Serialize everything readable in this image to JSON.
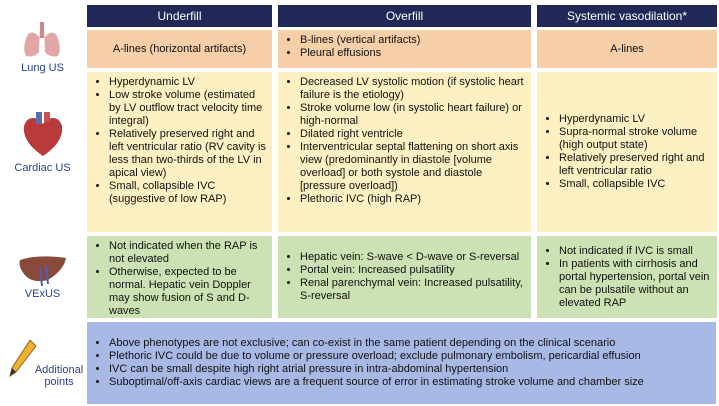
{
  "columns": [
    "Underfill",
    "Overfill",
    "Systemic vasodilation*"
  ],
  "rows": [
    {
      "label": "Lung US",
      "cells": [
        {
          "text": "A-lines (horizontal artifacts)"
        },
        {
          "bullets": [
            "B-lines (vertical artifacts)",
            "Pleural effusions"
          ]
        },
        {
          "text": "A-lines"
        }
      ]
    },
    {
      "label": "Cardiac US",
      "cells": [
        {
          "bullets": [
            "Hyperdynamic LV",
            "Low stroke volume (estimated by LV outflow tract velocity time integral)",
            "Relatively preserved right and left ventricular ratio (RV cavity is less than two-thirds of the LV in apical view)",
            "Small, collapsible IVC (suggestive of low RAP)"
          ]
        },
        {
          "bullets": [
            "Decreased LV systolic motion (if systolic heart failure is the etiology)",
            "Stroke volume low (in systolic heart failure) or high-normal",
            "Dilated right ventricle",
            "Interventricular septal flattening on short axis view (predominantly in diastole [volume overload] or both systole and diastole [pressure overload])",
            "Plethoric IVC (high RAP)"
          ]
        },
        {
          "bullets": [
            "Hyperdynamic LV",
            "Supra-normal stroke volume (high output state)",
            "Relatively preserved right and left ventricular ratio",
            "Small, collapsible IVC"
          ]
        }
      ]
    },
    {
      "label": "VExUS",
      "cells": [
        {
          "bullets": [
            "Not indicated when the RAP is not elevated",
            "Otherwise, expected to be normal. Hepatic vein Doppler may show fusion of S and D-waves"
          ]
        },
        {
          "bullets": [
            "Hepatic vein: S-wave < D-wave or S-reversal",
            "Portal vein: Increased pulsatility",
            "Renal parenchymal vein: Increased pulsatility, S-reversal"
          ]
        },
        {
          "bullets": [
            "Not indicated if IVC is small",
            "In patients with cirrhosis and portal hypertension, portal vein can be pulsatile without an elevated RAP"
          ]
        }
      ]
    }
  ],
  "additional": {
    "label": "Additional points",
    "bullets": [
      "Above phenotypes are not exclusive; can co-exist in the same patient depending on the clinical scenario",
      "Plethoric IVC could be due to volume or pressure overload; exclude pulmonary embolism, pericardial effusion",
      "IVC can be small despite high right atrial pressure in intra-abdominal hypertension",
      "Suboptimal/off-axis cardiac views are a frequent source of error in estimating stroke volume and chamber size"
    ]
  }
}
